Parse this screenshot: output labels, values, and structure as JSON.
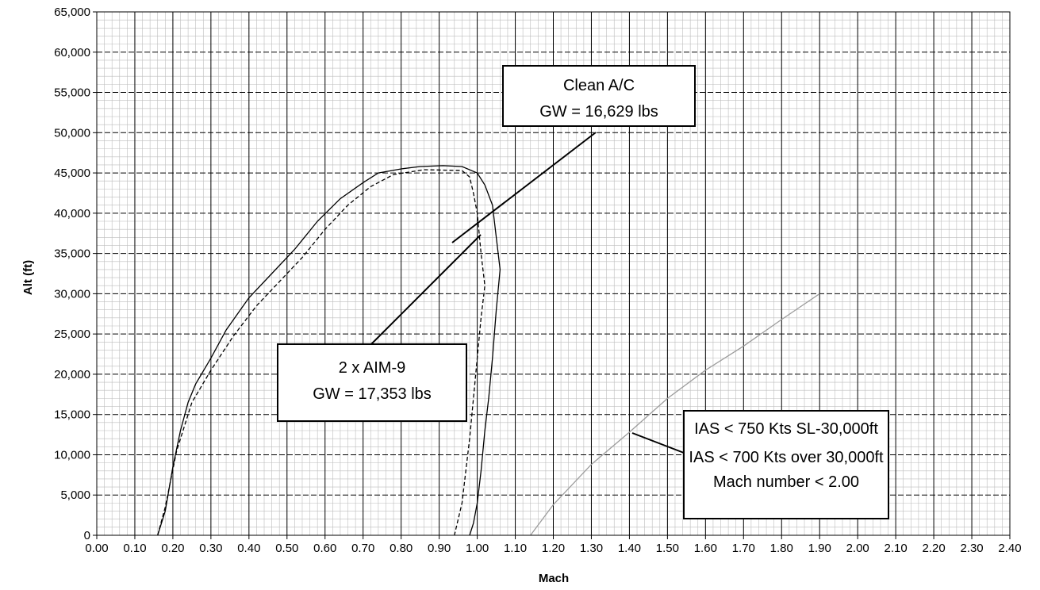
{
  "chart_data": {
    "type": "line",
    "title": "",
    "xlabel": "Mach",
    "ylabel": "Alt (ft)",
    "xlim": [
      0.0,
      2.4
    ],
    "ylim": [
      0,
      65000
    ],
    "x_major_step": 0.1,
    "y_major_step": 5000,
    "grid": {
      "major": true,
      "minor": true
    },
    "legend": "none",
    "x_ticks": [
      "0.00",
      "0.10",
      "0.20",
      "0.30",
      "0.40",
      "0.50",
      "0.60",
      "0.70",
      "0.80",
      "0.90",
      "1.00",
      "1.10",
      "1.20",
      "1.30",
      "1.40",
      "1.50",
      "1.60",
      "1.70",
      "1.80",
      "1.90",
      "2.00",
      "2.10",
      "2.20",
      "2.30",
      "2.40"
    ],
    "y_ticks": [
      "0",
      "5,000",
      "10,000",
      "15,000",
      "20,000",
      "25,000",
      "30,000",
      "35,000",
      "40,000",
      "45,000",
      "50,000",
      "55,000",
      "60,000",
      "65,000"
    ],
    "series": [
      {
        "style": "solid",
        "color": "#000000",
        "points": [
          [
            0.16,
            0
          ],
          [
            0.18,
            3000
          ],
          [
            0.2,
            8500
          ],
          [
            0.22,
            13000
          ],
          [
            0.24,
            16500
          ],
          [
            0.26,
            18800
          ],
          [
            0.3,
            22000
          ],
          [
            0.34,
            25500
          ],
          [
            0.4,
            29500
          ],
          [
            0.46,
            32500
          ],
          [
            0.52,
            35500
          ],
          [
            0.58,
            39000
          ],
          [
            0.64,
            41800
          ],
          [
            0.7,
            43800
          ],
          [
            0.74,
            45000
          ],
          [
            0.8,
            45500
          ],
          [
            0.85,
            45800
          ],
          [
            0.91,
            45900
          ],
          [
            0.96,
            45800
          ],
          [
            1.0,
            45000
          ],
          [
            1.02,
            43500
          ],
          [
            1.04,
            41000
          ],
          [
            1.05,
            37000
          ],
          [
            1.06,
            33000
          ],
          [
            1.05,
            28000
          ],
          [
            1.04,
            22000
          ],
          [
            1.03,
            17000
          ],
          [
            1.02,
            13000
          ],
          [
            1.01,
            8000
          ],
          [
            1.0,
            4000
          ],
          [
            0.99,
            1500
          ],
          [
            0.98,
            0
          ]
        ]
      },
      {
        "style": "dashed",
        "color": "#000000",
        "points": [
          [
            0.16,
            0
          ],
          [
            0.18,
            3500
          ],
          [
            0.21,
            10500
          ],
          [
            0.25,
            16500
          ],
          [
            0.3,
            20500
          ],
          [
            0.36,
            24800
          ],
          [
            0.42,
            28500
          ],
          [
            0.48,
            31500
          ],
          [
            0.54,
            34500
          ],
          [
            0.6,
            38000
          ],
          [
            0.66,
            41000
          ],
          [
            0.72,
            43300
          ],
          [
            0.78,
            44800
          ],
          [
            0.86,
            45400
          ],
          [
            0.96,
            45300
          ],
          [
            0.98,
            44500
          ],
          [
            0.99,
            42500
          ],
          [
            1.0,
            40000
          ],
          [
            1.01,
            35000
          ],
          [
            1.02,
            31000
          ],
          [
            1.01,
            27000
          ],
          [
            1.0,
            22000
          ],
          [
            0.99,
            17000
          ],
          [
            0.98,
            12000
          ],
          [
            0.97,
            8000
          ],
          [
            0.96,
            4000
          ],
          [
            0.94,
            0
          ]
        ]
      },
      {
        "style": "solid",
        "color": "#9c9c9c",
        "points": [
          [
            1.14,
            0
          ],
          [
            1.2,
            3800
          ],
          [
            1.3,
            8800
          ],
          [
            1.4,
            12800
          ],
          [
            1.5,
            17000
          ],
          [
            1.6,
            20500
          ],
          [
            1.7,
            23500
          ],
          [
            1.8,
            26800
          ],
          [
            1.9,
            30000
          ]
        ]
      }
    ],
    "annotations": [
      {
        "lines": [
          "Clean A/C",
          "GW = 16,629 lbs"
        ]
      },
      {
        "lines": [
          "2 x AIM-9",
          "GW = 17,353 lbs"
        ]
      },
      {
        "lines": [
          "IAS < 750 Kts SL-30,000ft",
          "IAS < 700 Kts over 30,000ft",
          "Mach number < 2.00"
        ]
      }
    ]
  }
}
